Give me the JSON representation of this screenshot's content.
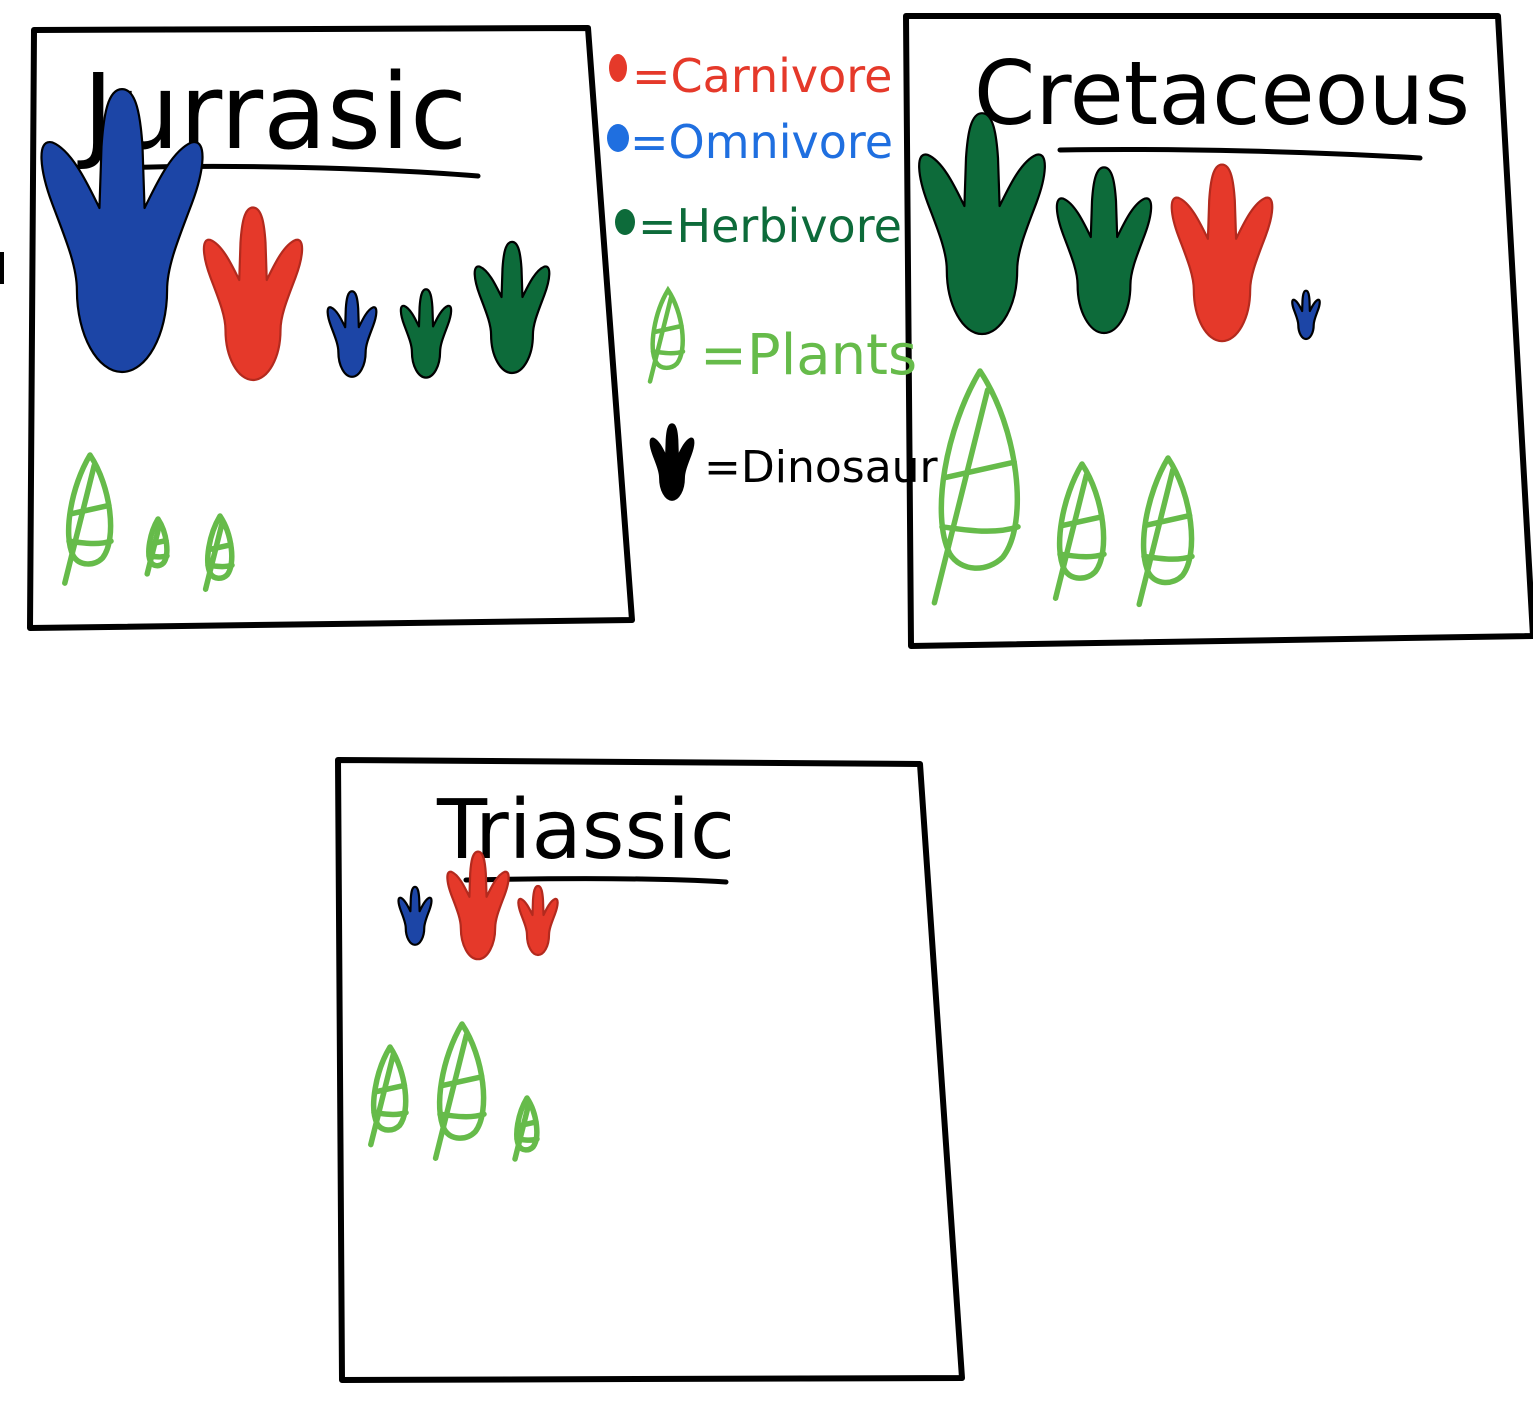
{
  "colors": {
    "ink": "#000000",
    "carnivore": "#e5392a",
    "omnivore_key": "#1f6fe0",
    "omnivore_print": "#1c45a6",
    "herbivore": "#0d6b3a",
    "plant": "#66bb4a"
  },
  "legend": {
    "carnivore_label": "=Carnivore",
    "omnivore_label": "=Omnivore",
    "herbivore_label": "=Herbivore",
    "plants_label": "=Plants",
    "dinosaur_label": "=Dinosaur"
  },
  "panels": [
    {
      "id": "jurassic",
      "title": "Jurrasic",
      "footprints": [
        {
          "diet": "omnivore",
          "size": "large"
        },
        {
          "diet": "carnivore",
          "size": "medium"
        },
        {
          "diet": "omnivore",
          "size": "small"
        },
        {
          "diet": "herbivore",
          "size": "small"
        },
        {
          "diet": "herbivore",
          "size": "medium"
        }
      ],
      "plants": [
        {
          "size": "medium"
        },
        {
          "size": "small"
        },
        {
          "size": "small"
        }
      ]
    },
    {
      "id": "cretaceous",
      "title": "Cretaceous",
      "footprints": [
        {
          "diet": "herbivore",
          "size": "large"
        },
        {
          "diet": "herbivore",
          "size": "medium"
        },
        {
          "diet": "carnivore",
          "size": "medium"
        },
        {
          "diet": "omnivore",
          "size": "tiny"
        }
      ],
      "plants": [
        {
          "size": "large"
        },
        {
          "size": "medium"
        },
        {
          "size": "medium"
        }
      ]
    },
    {
      "id": "triassic",
      "title": "Triassic",
      "footprints": [
        {
          "diet": "omnivore",
          "size": "small"
        },
        {
          "diet": "carnivore",
          "size": "medium"
        },
        {
          "diet": "carnivore",
          "size": "small"
        }
      ],
      "plants": [
        {
          "size": "medium"
        },
        {
          "size": "medium"
        },
        {
          "size": "small"
        }
      ]
    }
  ]
}
